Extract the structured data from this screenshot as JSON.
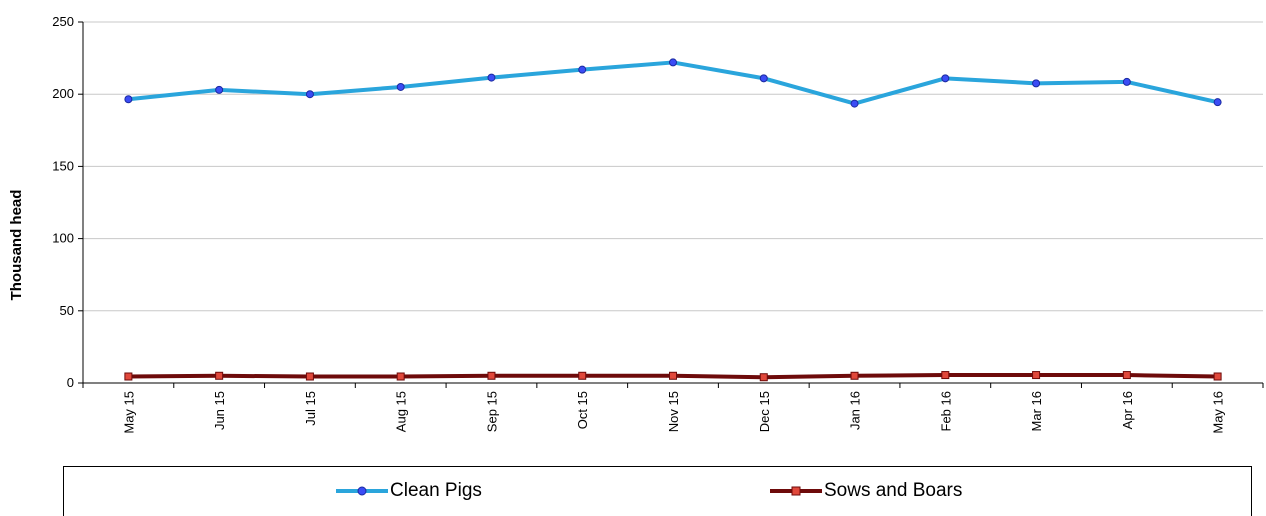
{
  "chart_data": {
    "type": "line",
    "title": "",
    "xlabel": "",
    "ylabel": "Thousand head",
    "ylim": [
      0,
      250
    ],
    "yticks": [
      0,
      50,
      100,
      150,
      200,
      250
    ],
    "grid": true,
    "legend_position": "bottom",
    "categories": [
      "May 15",
      "Jun 15",
      "Jul 15",
      "Aug 15",
      "Sep 15",
      "Oct 15",
      "Nov 15",
      "Dec 15",
      "Jan 16",
      "Feb 16",
      "Mar 16",
      "Apr 16",
      "May 16"
    ],
    "series": [
      {
        "name": "Clean Pigs",
        "color": "#2aa5dc",
        "marker": "circle",
        "marker_fill": "#3b4cf5",
        "values": [
          196.5,
          203,
          200,
          205,
          211.5,
          217,
          222,
          211,
          193.5,
          211,
          207.5,
          208.5,
          194.5
        ]
      },
      {
        "name": "Sows and Boars",
        "color": "#6e0a0a",
        "marker": "square",
        "marker_fill": "#e0483b",
        "values": [
          4.5,
          5,
          4.5,
          4.5,
          5,
          5,
          5,
          4,
          5,
          5.5,
          5.5,
          5.5,
          4.5
        ]
      }
    ]
  }
}
